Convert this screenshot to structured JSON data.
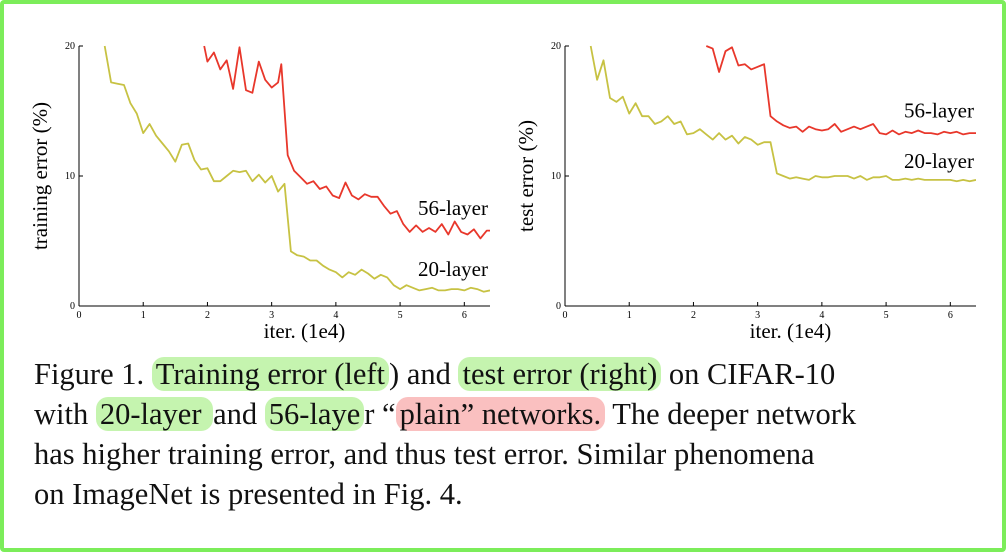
{
  "chart_data": [
    {
      "type": "line",
      "title": "",
      "xlabel": "iter. (1e4)",
      "ylabel": "training error (%)",
      "xlim": [
        0,
        6.4
      ],
      "ylim": [
        0,
        20
      ],
      "xticks": [
        0,
        1,
        2,
        3,
        4,
        5,
        6
      ],
      "yticks": [
        0,
        10,
        20
      ],
      "grid": false,
      "series": [
        {
          "name": "56-layer",
          "color": "#e8372b",
          "x": [
            1.95,
            2.0,
            2.1,
            2.2,
            2.3,
            2.4,
            2.5,
            2.6,
            2.7,
            2.8,
            2.9,
            3.0,
            3.1,
            3.15,
            3.25,
            3.35,
            3.45,
            3.55,
            3.65,
            3.75,
            3.85,
            3.95,
            4.05,
            4.15,
            4.25,
            4.35,
            4.45,
            4.55,
            4.65,
            4.75,
            4.85,
            4.95,
            5.05,
            5.15,
            5.25,
            5.35,
            5.45,
            5.55,
            5.65,
            5.75,
            5.85,
            5.95,
            6.05,
            6.15,
            6.25,
            6.35,
            6.4
          ],
          "y": [
            20.0,
            18.8,
            19.5,
            18.2,
            18.9,
            16.7,
            19.9,
            16.6,
            16.4,
            18.8,
            17.4,
            16.8,
            17.2,
            18.6,
            11.6,
            10.4,
            9.9,
            9.4,
            9.6,
            9.0,
            9.2,
            8.5,
            8.3,
            9.5,
            8.5,
            8.2,
            8.6,
            8.4,
            8.4,
            7.7,
            7.1,
            7.3,
            6.3,
            5.7,
            6.2,
            5.7,
            6.0,
            5.7,
            6.3,
            5.5,
            6.5,
            5.7,
            5.5,
            5.9,
            5.2,
            5.8,
            5.8
          ]
        },
        {
          "name": "20-layer",
          "color": "#c7c243",
          "x": [
            0.4,
            0.5,
            0.6,
            0.7,
            0.8,
            0.9,
            1.0,
            1.1,
            1.2,
            1.3,
            1.4,
            1.5,
            1.6,
            1.7,
            1.8,
            1.9,
            2.0,
            2.1,
            2.2,
            2.3,
            2.4,
            2.5,
            2.6,
            2.7,
            2.8,
            2.9,
            3.0,
            3.1,
            3.2,
            3.3,
            3.4,
            3.5,
            3.6,
            3.7,
            3.8,
            3.9,
            4.0,
            4.1,
            4.2,
            4.3,
            4.4,
            4.5,
            4.6,
            4.7,
            4.8,
            4.9,
            5.0,
            5.1,
            5.2,
            5.3,
            5.4,
            5.5,
            5.6,
            5.7,
            5.8,
            5.9,
            6.0,
            6.1,
            6.2,
            6.3,
            6.4
          ],
          "y": [
            20.0,
            17.2,
            17.1,
            17.0,
            15.6,
            14.8,
            13.3,
            14.0,
            13.1,
            12.5,
            11.9,
            11.1,
            12.4,
            12.5,
            11.2,
            10.5,
            10.6,
            9.6,
            9.6,
            10.0,
            10.4,
            10.3,
            10.4,
            9.6,
            10.1,
            9.5,
            10.0,
            8.8,
            9.4,
            4.2,
            3.9,
            3.8,
            3.5,
            3.5,
            3.1,
            2.8,
            2.6,
            2.2,
            2.6,
            2.4,
            2.8,
            2.5,
            2.1,
            2.4,
            2.2,
            1.6,
            1.3,
            1.6,
            1.4,
            1.2,
            1.3,
            1.4,
            1.2,
            1.2,
            1.3,
            1.3,
            1.2,
            1.4,
            1.3,
            1.1,
            1.2
          ]
        }
      ]
    },
    {
      "type": "line",
      "title": "",
      "xlabel": "iter. (1e4)",
      "ylabel": "test error (%)",
      "xlim": [
        0,
        6.4
      ],
      "ylim": [
        0,
        20
      ],
      "xticks": [
        0,
        1,
        2,
        3,
        4,
        5,
        6
      ],
      "yticks": [
        0,
        10,
        20
      ],
      "grid": false,
      "series": [
        {
          "name": "56-layer",
          "color": "#e8372b",
          "x": [
            2.2,
            2.3,
            2.4,
            2.5,
            2.6,
            2.7,
            2.8,
            2.9,
            3.0,
            3.1,
            3.2,
            3.3,
            3.4,
            3.5,
            3.6,
            3.7,
            3.8,
            3.9,
            4.0,
            4.1,
            4.2,
            4.3,
            4.4,
            4.5,
            4.6,
            4.7,
            4.8,
            4.9,
            5.0,
            5.1,
            5.2,
            5.3,
            5.4,
            5.5,
            5.6,
            5.7,
            5.8,
            5.9,
            6.0,
            6.1,
            6.2,
            6.3,
            6.4
          ],
          "y": [
            20.0,
            19.8,
            18.0,
            19.6,
            19.9,
            18.5,
            18.6,
            18.2,
            18.4,
            18.6,
            14.6,
            14.2,
            13.9,
            13.7,
            13.8,
            13.4,
            13.8,
            13.6,
            13.5,
            13.6,
            14.0,
            13.4,
            13.6,
            13.8,
            13.6,
            13.8,
            14.0,
            13.3,
            13.2,
            13.5,
            13.2,
            13.4,
            13.3,
            13.5,
            13.3,
            13.3,
            13.2,
            13.4,
            13.3,
            13.4,
            13.2,
            13.3,
            13.3
          ]
        },
        {
          "name": "20-layer",
          "color": "#c7c243",
          "x": [
            0.4,
            0.5,
            0.6,
            0.7,
            0.8,
            0.9,
            1.0,
            1.1,
            1.2,
            1.3,
            1.4,
            1.5,
            1.6,
            1.7,
            1.8,
            1.9,
            2.0,
            2.1,
            2.2,
            2.3,
            2.4,
            2.5,
            2.6,
            2.7,
            2.8,
            2.9,
            3.0,
            3.1,
            3.2,
            3.3,
            3.4,
            3.5,
            3.6,
            3.7,
            3.8,
            3.9,
            4.0,
            4.1,
            4.2,
            4.3,
            4.4,
            4.5,
            4.6,
            4.7,
            4.8,
            4.9,
            5.0,
            5.1,
            5.2,
            5.3,
            5.4,
            5.5,
            5.6,
            5.7,
            5.8,
            5.9,
            6.0,
            6.1,
            6.2,
            6.3,
            6.4
          ],
          "y": [
            20.0,
            17.4,
            18.9,
            16.0,
            15.7,
            16.1,
            14.8,
            15.6,
            14.6,
            14.6,
            14.0,
            14.2,
            14.6,
            14.0,
            14.2,
            13.2,
            13.3,
            13.6,
            13.2,
            12.8,
            13.3,
            12.8,
            13.1,
            12.5,
            13.0,
            12.8,
            12.4,
            12.6,
            12.6,
            10.2,
            10.0,
            9.8,
            9.9,
            9.8,
            9.7,
            10.0,
            9.9,
            9.9,
            10.0,
            10.0,
            10.0,
            9.8,
            10.0,
            9.7,
            9.9,
            9.9,
            10.0,
            9.7,
            9.7,
            9.8,
            9.7,
            9.8,
            9.7,
            9.7,
            9.7,
            9.7,
            9.7,
            9.6,
            9.7,
            9.6,
            9.7
          ]
        }
      ]
    }
  ],
  "caption": {
    "line1": {
      "a": "Figure 1. ",
      "hl1": "Training error (left",
      "b": ") and ",
      "hl2": "test error (right)",
      "c": " on CIFAR-10"
    },
    "line2": {
      "a": "with ",
      "hl1": "20-layer ",
      "b": "and ",
      "hl2": "56-laye",
      "c": "r “",
      "hl3": "plain” networks.",
      "d": " The deeper network"
    },
    "line3": "has higher training error, and thus test error.  Similar phenomena",
    "line4": "on ImageNet is presented in Fig. 4."
  }
}
